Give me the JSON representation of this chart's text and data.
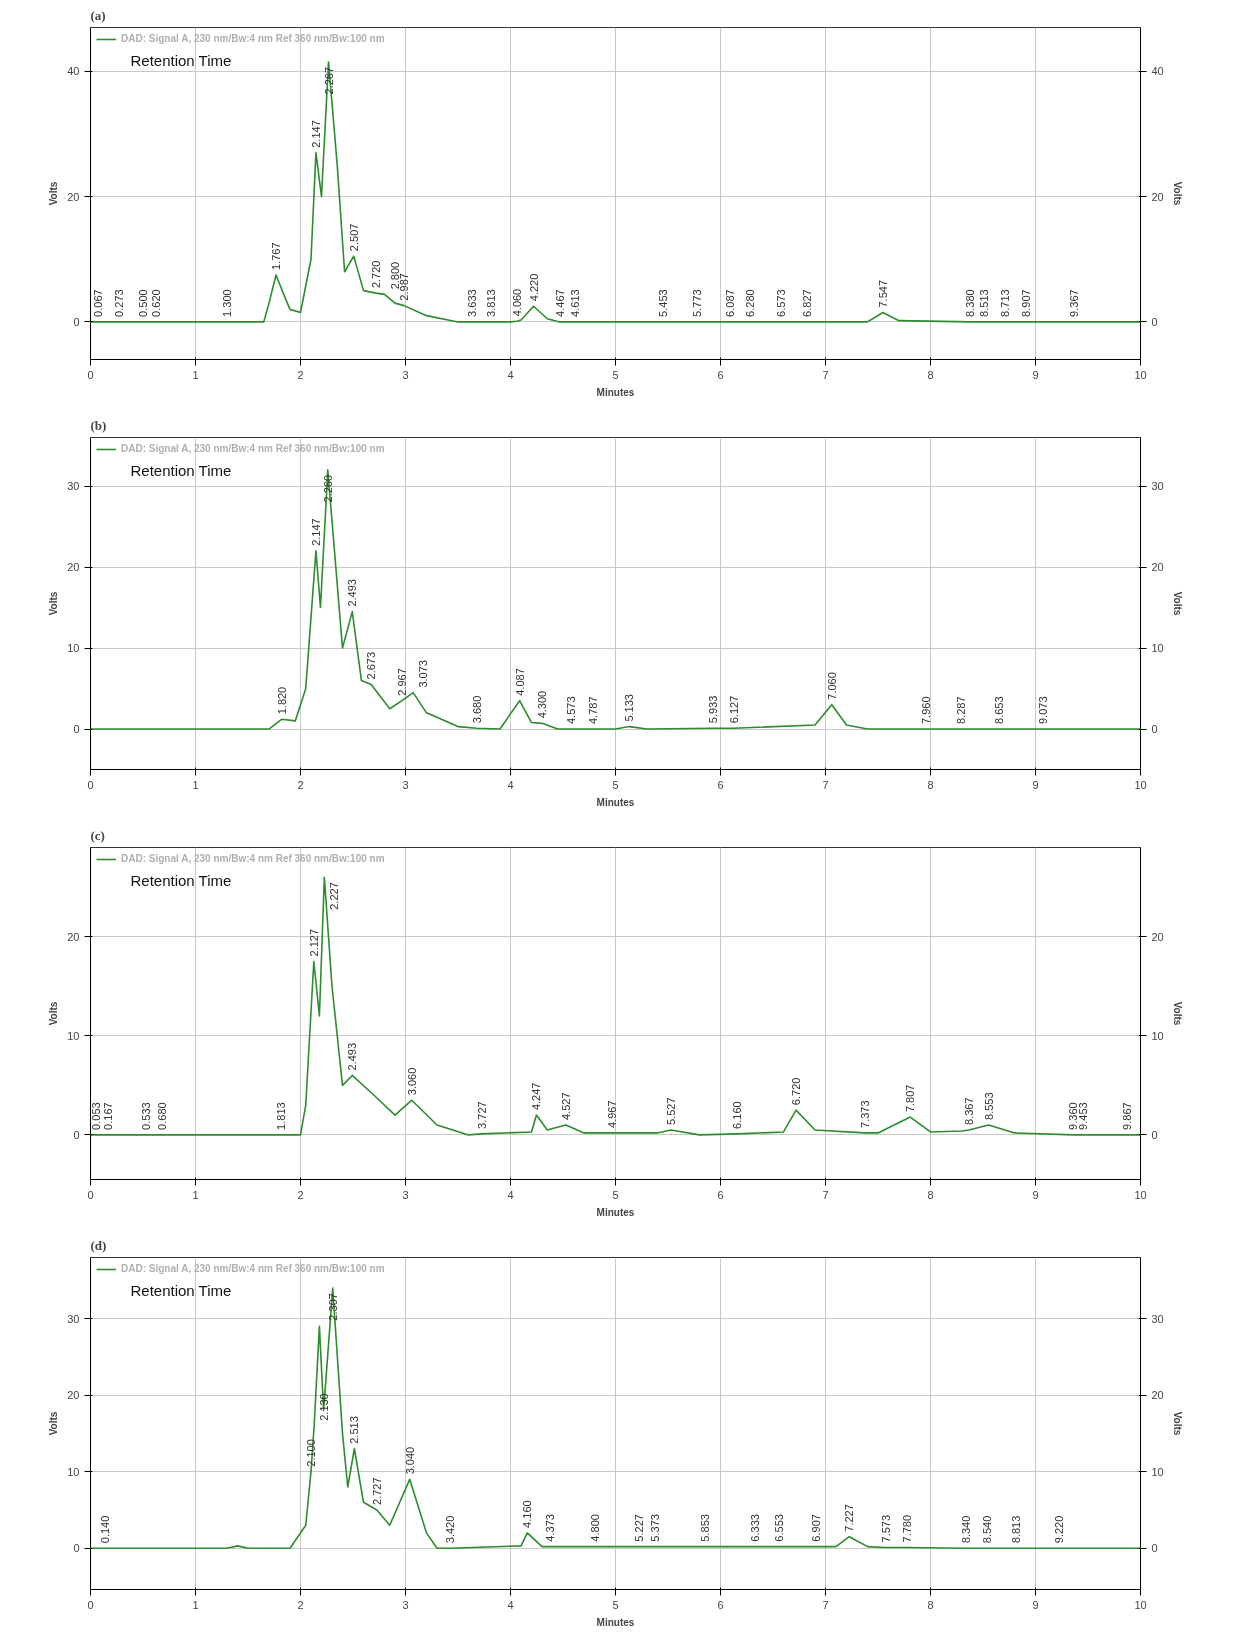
{
  "chart_data": [
    {
      "type": "line",
      "title": "(a)",
      "xlabel": "Minutes",
      "ylabel": "Volts",
      "y2label": "Volts",
      "xlim": [
        0,
        10
      ],
      "xticks": [
        0,
        1,
        2,
        3,
        4,
        5,
        6,
        7,
        8,
        9,
        10
      ],
      "ylim": [
        -6,
        47
      ],
      "yticks": [
        0,
        20,
        40
      ],
      "y2lim": [
        -6,
        47
      ],
      "y2ticks": [
        0,
        20,
        40
      ],
      "grid": true,
      "legend": "top left",
      "marker": "none",
      "line_style": "solid",
      "series": [
        {
          "name": "DAD: Signal A, 230 nm/Bw:4 nm Ref 360 nm/Bw:100 nm",
          "color": "#2e8b2e",
          "x": [
            0,
            0.067,
            0.273,
            0.5,
            0.62,
            1.3,
            1.65,
            1.7,
            1.767,
            1.85,
            1.9,
            2.0,
            2.1,
            2.147,
            2.2,
            2.267,
            2.35,
            2.42,
            2.507,
            2.6,
            2.72,
            2.8,
            2.9,
            2.987,
            3.2,
            3.5,
            3.633,
            3.813,
            4.0,
            4.06,
            4.1,
            4.22,
            4.35,
            4.467,
            4.613,
            5.453,
            5.773,
            6.087,
            6.28,
            6.573,
            6.827,
            7.4,
            7.547,
            7.7,
            8.38,
            8.513,
            8.713,
            8.907,
            9.367,
            10
          ],
          "values": [
            0,
            0,
            0,
            0,
            0,
            0,
            0,
            3,
            7.5,
            4,
            2,
            1.5,
            10,
            27,
            20,
            41.5,
            25,
            8,
            10.5,
            5,
            4.6,
            4.4,
            3,
            2.6,
            1,
            0,
            0,
            0,
            0,
            0.1,
            0.3,
            2.5,
            0.5,
            0,
            0,
            0,
            0,
            0,
            0,
            0,
            0,
            0,
            1.5,
            0.2,
            0,
            0,
            0,
            0,
            0,
            0
          ]
        }
      ],
      "annotations": [
        "Retention Time",
        {
          "text": "0.067",
          "x": 0.067,
          "y": 0
        },
        {
          "text": "0.273",
          "x": 0.273,
          "y": 0
        },
        {
          "text": "0.500",
          "x": 0.5,
          "y": 0
        },
        {
          "text": "0.620",
          "x": 0.62,
          "y": 0
        },
        {
          "text": "1.300",
          "x": 1.3,
          "y": 0
        },
        {
          "text": "1.767",
          "x": 1.767,
          "y": 7.5
        },
        {
          "text": "2.147",
          "x": 2.147,
          "y": 27
        },
        {
          "text": "2.267",
          "x": 2.267,
          "y": 41.5
        },
        {
          "text": "2.507",
          "x": 2.507,
          "y": 10.5
        },
        {
          "text": "2.720",
          "x": 2.72,
          "y": 4.6
        },
        {
          "text": "2.800",
          "x": 2.8,
          "y": 4.4
        },
        {
          "text": "2.987",
          "x": 2.987,
          "y": 2.6
        },
        {
          "text": "3.633",
          "x": 3.633,
          "y": 0
        },
        {
          "text": "3.813",
          "x": 3.813,
          "y": 0
        },
        {
          "text": "4.060",
          "x": 4.06,
          "y": 0.1
        },
        {
          "text": "4.220",
          "x": 4.22,
          "y": 2.5
        },
        {
          "text": "4.467",
          "x": 4.467,
          "y": 0
        },
        {
          "text": "4.613",
          "x": 4.613,
          "y": 0
        },
        {
          "text": "5.453",
          "x": 5.453,
          "y": 0
        },
        {
          "text": "5.773",
          "x": 5.773,
          "y": 0
        },
        {
          "text": "6.087",
          "x": 6.087,
          "y": 0
        },
        {
          "text": "6.280",
          "x": 6.28,
          "y": 0
        },
        {
          "text": "6.573",
          "x": 6.573,
          "y": 0
        },
        {
          "text": "6.827",
          "x": 6.827,
          "y": 0
        },
        {
          "text": "7.547",
          "x": 7.547,
          "y": 1.5
        },
        {
          "text": "8.380",
          "x": 8.38,
          "y": 0
        },
        {
          "text": "8.513",
          "x": 8.513,
          "y": 0
        },
        {
          "text": "8.713",
          "x": 8.713,
          "y": 0
        },
        {
          "text": "8.907",
          "x": 8.907,
          "y": 0
        },
        {
          "text": "9.367",
          "x": 9.367,
          "y": 0
        }
      ]
    },
    {
      "type": "line",
      "title": "(b)",
      "xlabel": "Minutes",
      "ylabel": "Volts",
      "y2label": "Volts",
      "xlim": [
        0,
        10
      ],
      "xticks": [
        0,
        1,
        2,
        3,
        4,
        5,
        6,
        7,
        8,
        9,
        10
      ],
      "ylim": [
        -5,
        36
      ],
      "yticks": [
        0,
        10,
        20,
        30
      ],
      "y2lim": [
        -5,
        36
      ],
      "y2ticks": [
        0,
        10,
        20,
        30
      ],
      "grid": true,
      "legend": "top left",
      "marker": "none",
      "line_style": "solid",
      "series": [
        {
          "name": "DAD: Signal A, 230 nm/Bw:4 nm Ref 360 nm/Bw:100 nm",
          "color": "#2e8b2e",
          "x": [
            0,
            1.7,
            1.82,
            1.95,
            2.05,
            2.147,
            2.19,
            2.26,
            2.4,
            2.493,
            2.58,
            2.673,
            2.85,
            2.967,
            3.073,
            3.2,
            3.5,
            3.68,
            3.9,
            4.087,
            4.2,
            4.3,
            4.45,
            4.573,
            4.787,
            5.0,
            5.133,
            5.3,
            5.933,
            6.127,
            6.9,
            7.06,
            7.2,
            7.4,
            7.96,
            8.287,
            8.653,
            9.073,
            10
          ],
          "values": [
            0,
            0,
            1.2,
            1,
            5,
            22,
            15,
            32,
            10,
            14.5,
            6,
            5.5,
            2.5,
            3.5,
            4.5,
            2,
            0.3,
            0.1,
            0,
            3.5,
            0.8,
            0.7,
            0,
            0,
            0,
            0,
            0.3,
            0,
            0.1,
            0.1,
            0.5,
            3,
            0.5,
            0,
            0,
            0,
            0,
            0,
            0
          ]
        }
      ],
      "annotations": [
        "Retention Time",
        {
          "text": "1.820",
          "x": 1.82,
          "y": 1.2
        },
        {
          "text": "2.147",
          "x": 2.147,
          "y": 22
        },
        {
          "text": "2.260",
          "x": 2.26,
          "y": 32
        },
        {
          "text": "2.493",
          "x": 2.493,
          "y": 14.5
        },
        {
          "text": "2.673",
          "x": 2.673,
          "y": 5.5
        },
        {
          "text": "2.967",
          "x": 2.967,
          "y": 3.5
        },
        {
          "text": "3.073",
          "x": 3.073,
          "y": 4.5
        },
        {
          "text": "3.680",
          "x": 3.68,
          "y": 0.1
        },
        {
          "text": "4.087",
          "x": 4.087,
          "y": 3.5
        },
        {
          "text": "4.300",
          "x": 4.3,
          "y": 0.7
        },
        {
          "text": "4.573",
          "x": 4.573,
          "y": 0
        },
        {
          "text": "4.787",
          "x": 4.787,
          "y": 0
        },
        {
          "text": "5.133",
          "x": 5.133,
          "y": 0.3
        },
        {
          "text": "5.933",
          "x": 5.933,
          "y": 0.1
        },
        {
          "text": "6.127",
          "x": 6.127,
          "y": 0.1
        },
        {
          "text": "7.060",
          "x": 7.06,
          "y": 3
        },
        {
          "text": "7.960",
          "x": 7.96,
          "y": 0
        },
        {
          "text": "8.287",
          "x": 8.287,
          "y": 0
        },
        {
          "text": "8.653",
          "x": 8.653,
          "y": 0
        },
        {
          "text": "9.073",
          "x": 9.073,
          "y": 0
        }
      ]
    },
    {
      "type": "line",
      "title": "(c)",
      "xlabel": "Minutes",
      "ylabel": "Volts",
      "y2label": "Volts",
      "xlim": [
        0,
        10
      ],
      "xticks": [
        0,
        1,
        2,
        3,
        4,
        5,
        6,
        7,
        8,
        9,
        10
      ],
      "ylim": [
        -4.5,
        29
      ],
      "yticks": [
        0,
        10,
        20
      ],
      "y2lim": [
        -4.5,
        29
      ],
      "y2ticks": [
        0,
        10,
        20
      ],
      "grid": true,
      "legend": "top left",
      "marker": "none",
      "line_style": "solid",
      "series": [
        {
          "name": "DAD: Signal A, 230 nm/Bw:4 nm Ref 360 nm/Bw:100 nm",
          "color": "#2e8b2e",
          "x": [
            0,
            0.053,
            0.167,
            0.533,
            0.68,
            1.813,
            2.0,
            2.05,
            2.127,
            2.18,
            2.227,
            2.3,
            2.4,
            2.493,
            2.7,
            2.9,
            3.06,
            3.3,
            3.6,
            3.727,
            4.2,
            4.247,
            4.35,
            4.527,
            4.7,
            4.967,
            5.4,
            5.527,
            5.8,
            6.16,
            6.6,
            6.72,
            6.9,
            7.373,
            7.5,
            7.807,
            8.0,
            8.3,
            8.367,
            8.553,
            8.8,
            9.36,
            9.453,
            9.867,
            10
          ],
          "values": [
            0,
            0,
            0,
            0,
            0,
            0,
            0,
            3,
            17.5,
            12,
            26,
            15,
            5,
            6,
            4,
            2,
            3.5,
            1,
            0,
            0.1,
            0.3,
            2,
            0.5,
            1,
            0.2,
            0.2,
            0.2,
            0.5,
            0,
            0.1,
            0.3,
            2.5,
            0.5,
            0.2,
            0.2,
            1.8,
            0.3,
            0.4,
            0.5,
            1,
            0.2,
            0,
            0,
            0,
            0
          ]
        }
      ],
      "annotations": [
        "Retention Time",
        {
          "text": "0.053",
          "x": 0.053,
          "y": 0
        },
        {
          "text": "0.167",
          "x": 0.167,
          "y": 0
        },
        {
          "text": "0.533",
          "x": 0.533,
          "y": 0
        },
        {
          "text": "0.680",
          "x": 0.68,
          "y": 0
        },
        {
          "text": "1.813",
          "x": 1.813,
          "y": 0
        },
        {
          "text": "2.127",
          "x": 2.127,
          "y": 17.5
        },
        {
          "text": "2.227",
          "x": 2.227,
          "y": 26
        },
        {
          "text": "2.493",
          "x": 2.493,
          "y": 6
        },
        {
          "text": "3.060",
          "x": 3.06,
          "y": 3.5
        },
        {
          "text": "3.727",
          "x": 3.727,
          "y": 0.1
        },
        {
          "text": "4.247",
          "x": 4.247,
          "y": 2
        },
        {
          "text": "4.527",
          "x": 4.527,
          "y": 1
        },
        {
          "text": "4.967",
          "x": 4.967,
          "y": 0.2
        },
        {
          "text": "5.527",
          "x": 5.527,
          "y": 0.5
        },
        {
          "text": "6.160",
          "x": 6.16,
          "y": 0.1
        },
        {
          "text": "6.720",
          "x": 6.72,
          "y": 2.5
        },
        {
          "text": "7.373",
          "x": 7.373,
          "y": 0.2
        },
        {
          "text": "7.807",
          "x": 7.807,
          "y": 1.8
        },
        {
          "text": "8.367",
          "x": 8.367,
          "y": 0.5
        },
        {
          "text": "8.553",
          "x": 8.553,
          "y": 1
        },
        {
          "text": "9.360",
          "x": 9.36,
          "y": 0
        },
        {
          "text": "9.453",
          "x": 9.453,
          "y": 0
        },
        {
          "text": "9.867",
          "x": 9.867,
          "y": 0
        }
      ]
    },
    {
      "type": "line",
      "title": "(d)",
      "xlabel": "Minutes",
      "ylabel": "Volts",
      "y2label": "Volts",
      "xlim": [
        0,
        10
      ],
      "xticks": [
        0,
        1,
        2,
        3,
        4,
        5,
        6,
        7,
        8,
        9,
        10
      ],
      "ylim": [
        -5.4,
        38
      ],
      "yticks": [
        0,
        10,
        20,
        30
      ],
      "y2lim": [
        -5.4,
        38
      ],
      "y2ticks": [
        0,
        10,
        20,
        30
      ],
      "grid": true,
      "legend": "top left",
      "marker": "none",
      "line_style": "solid",
      "series": [
        {
          "name": "DAD: Signal A, 230 nm/Bw:4 nm Ref 360 nm/Bw:100 nm",
          "color": "#2e8b2e",
          "x": [
            0,
            0.14,
            1.3,
            1.4,
            1.5,
            1.9,
            2.05,
            2.1,
            2.13,
            2.18,
            2.22,
            2.307,
            2.4,
            2.45,
            2.513,
            2.6,
            2.727,
            2.85,
            3.04,
            3.2,
            3.3,
            3.42,
            4.1,
            4.16,
            4.3,
            4.373,
            4.8,
            5.227,
            5.373,
            5.853,
            6.333,
            6.553,
            6.907,
            7.1,
            7.227,
            7.4,
            7.573,
            7.78,
            8.34,
            8.54,
            8.813,
            9.22,
            10
          ],
          "values": [
            0,
            0,
            0,
            0.3,
            0,
            0,
            3,
            10,
            16,
            29,
            18,
            34,
            15,
            8,
            13,
            6,
            5,
            3,
            9,
            2,
            0,
            0,
            0.3,
            2,
            0.2,
            0.2,
            0.2,
            0.2,
            0.2,
            0.2,
            0.2,
            0.2,
            0.2,
            0.2,
            1.5,
            0.2,
            0.1,
            0.1,
            0,
            0,
            0,
            0,
            0
          ]
        }
      ],
      "annotations": [
        "Retention Time",
        {
          "text": "0.140",
          "x": 0.14,
          "y": 0
        },
        {
          "text": "2.100",
          "x": 2.1,
          "y": 10
        },
        {
          "text": "2.130",
          "x": 2.13,
          "y": 16
        },
        {
          "text": "2.307",
          "x": 2.307,
          "y": 34
        },
        {
          "text": "2.513",
          "x": 2.513,
          "y": 13
        },
        {
          "text": "2.727",
          "x": 2.727,
          "y": 5
        },
        {
          "text": "3.040",
          "x": 3.04,
          "y": 9
        },
        {
          "text": "3.420",
          "x": 3.42,
          "y": 0
        },
        {
          "text": "4.160",
          "x": 4.16,
          "y": 2
        },
        {
          "text": "4.373",
          "x": 4.373,
          "y": 0.2
        },
        {
          "text": "4.800",
          "x": 4.8,
          "y": 0.2
        },
        {
          "text": "5.227",
          "x": 5.227,
          "y": 0.2
        },
        {
          "text": "5.373",
          "x": 5.373,
          "y": 0.2
        },
        {
          "text": "5.853",
          "x": 5.853,
          "y": 0.2
        },
        {
          "text": "6.333",
          "x": 6.333,
          "y": 0.2
        },
        {
          "text": "6.553",
          "x": 6.553,
          "y": 0.2
        },
        {
          "text": "6.907",
          "x": 6.907,
          "y": 0.2
        },
        {
          "text": "7.227",
          "x": 7.227,
          "y": 1.5
        },
        {
          "text": "7.573",
          "x": 7.573,
          "y": 0.1
        },
        {
          "text": "7.780",
          "x": 7.78,
          "y": 0.1
        },
        {
          "text": "8.340",
          "x": 8.34,
          "y": 0
        },
        {
          "text": "8.540",
          "x": 8.54,
          "y": 0
        },
        {
          "text": "8.813",
          "x": 8.813,
          "y": 0
        },
        {
          "text": "9.220",
          "x": 9.22,
          "y": 0
        }
      ]
    }
  ]
}
